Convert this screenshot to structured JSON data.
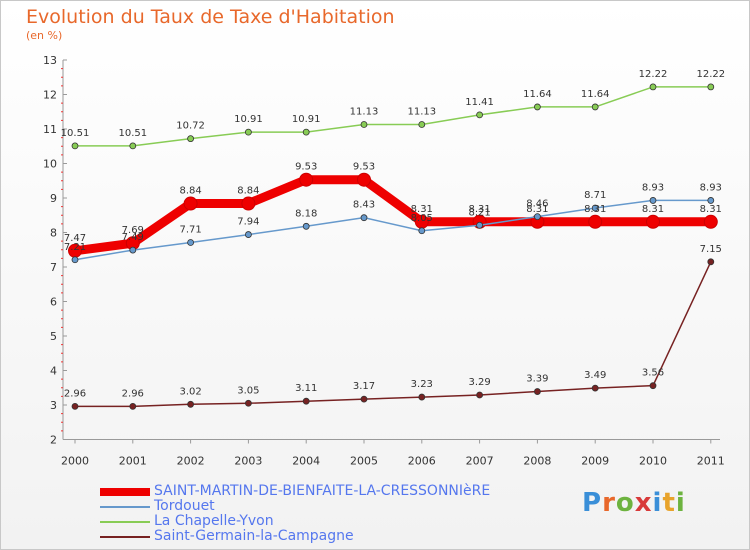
{
  "title": "Evolution du Taux de Taxe d'Habitation",
  "unit": "(en %)",
  "logo": {
    "letters": [
      "P",
      "r",
      "o",
      "x",
      "i",
      "t",
      "i"
    ],
    "colors": [
      "#3a8fd8",
      "#e8682b",
      "#6db33f",
      "#d83a3a",
      "#3a8fd8",
      "#e8a32b",
      "#6db33f"
    ]
  },
  "chart_data": {
    "type": "line",
    "title": "Evolution du Taux de Taxe d'Habitation",
    "ylabel": "(en %)",
    "xlabel": "",
    "x": [
      "2000",
      "2001",
      "2002",
      "2003",
      "2004",
      "2005",
      "2006",
      "2007",
      "2008",
      "2009",
      "2010",
      "2011"
    ],
    "yticks": [
      "2",
      "3",
      "4",
      "5",
      "6",
      "7",
      "8",
      "9",
      "10",
      "11",
      "12",
      "13"
    ],
    "ylim": [
      2,
      13
    ],
    "grid": false,
    "legend": "bottom-left",
    "series": [
      {
        "name": "SAINT-MARTIN-DE-BIENFAITE-LA-CRESSONNIèRE",
        "color": "#ee0000",
        "values": [
          7.47,
          7.69,
          8.84,
          8.84,
          9.53,
          9.53,
          8.31,
          8.31,
          8.31,
          8.31,
          8.31,
          8.31
        ],
        "labels": [
          "7.47",
          "7.69",
          "8.84",
          "8.84",
          "9.53",
          "9.53",
          "8.31",
          "8.31",
          "8.31",
          "8.31",
          "8.31",
          "8.31"
        ]
      },
      {
        "name": "Tordouet",
        "color": "#6699cc",
        "values": [
          7.21,
          7.49,
          7.71,
          7.94,
          8.18,
          8.43,
          8.05,
          8.21,
          8.46,
          8.71,
          8.93,
          8.93
        ],
        "labels": [
          "7.21",
          "7.49",
          "7.71",
          "7.94",
          "8.18",
          "8.43",
          "8.05",
          "8.21",
          "8.46",
          "8.71",
          "8.93",
          "8.93"
        ]
      },
      {
        "name": "La Chapelle-Yvon",
        "color": "#88cc55",
        "values": [
          10.51,
          10.51,
          10.72,
          10.91,
          10.91,
          11.13,
          11.13,
          11.41,
          11.64,
          11.64,
          12.22,
          12.22
        ],
        "labels": [
          "10.51",
          "10.51",
          "10.72",
          "10.91",
          "10.91",
          "11.13",
          "11.13",
          "11.41",
          "11.64",
          "11.64",
          "12.22",
          "12.22"
        ]
      },
      {
        "name": "Saint-Germain-la-Campagne",
        "color": "#772222",
        "values": [
          2.96,
          2.96,
          3.02,
          3.05,
          3.11,
          3.17,
          3.23,
          3.29,
          3.39,
          3.49,
          3.56,
          7.15
        ],
        "labels": [
          "2.96",
          "2.96",
          "3.02",
          "3.05",
          "3.11",
          "3.17",
          "3.23",
          "3.29",
          "3.39",
          "3.49",
          "3.56",
          "7.15"
        ]
      }
    ]
  }
}
